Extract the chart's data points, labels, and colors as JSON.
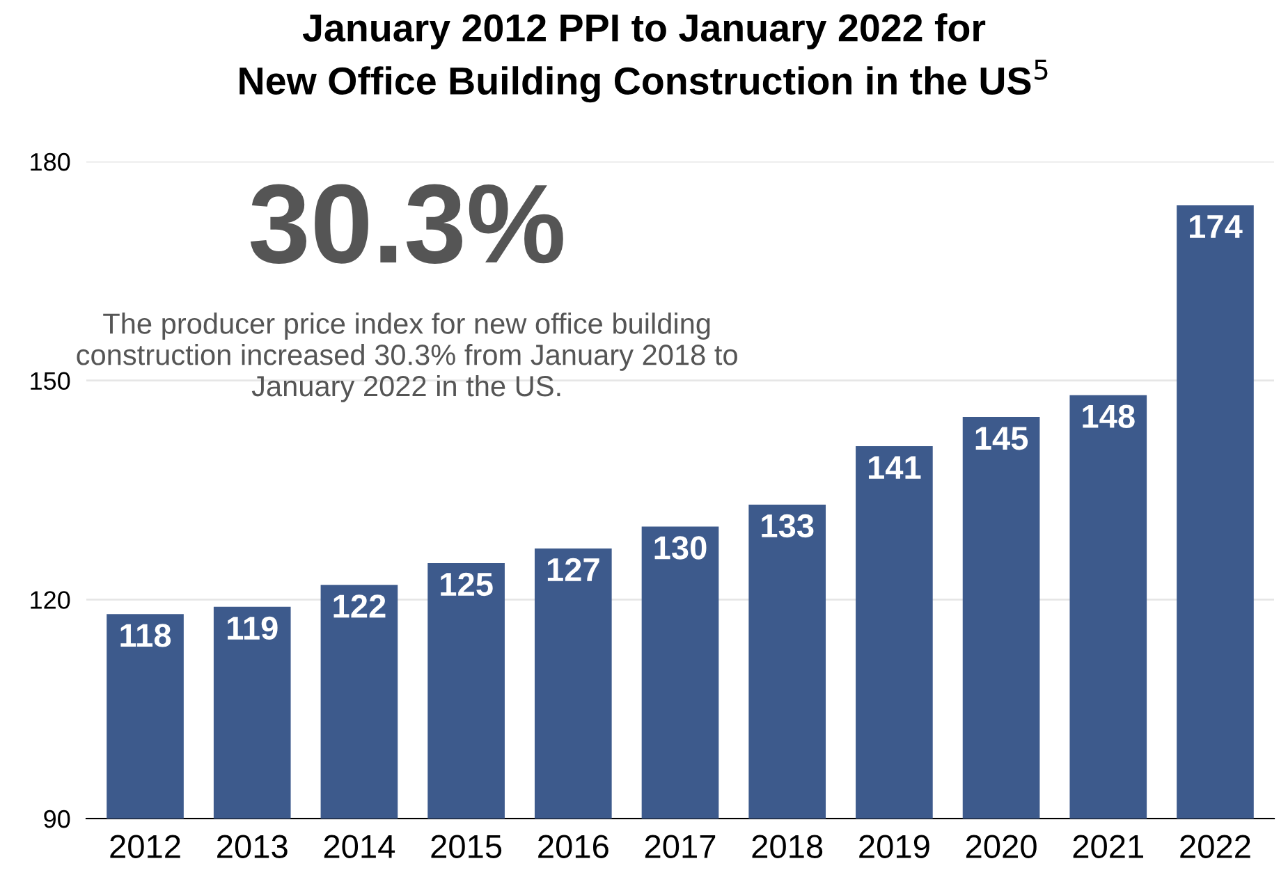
{
  "chart_data": {
    "type": "bar",
    "title": "January 2012 PPI to January 2022 for\nNew Office Building Construction in the US$^{5}$",
    "categories": [
      "2012",
      "2013",
      "2014",
      "2015",
      "2016",
      "2017",
      "2018",
      "2019",
      "2020",
      "2021",
      "2022"
    ],
    "values": [
      118,
      119,
      122,
      125,
      127,
      130,
      133,
      141,
      145,
      148,
      174
    ],
    "color": "#3d5a8c",
    "ylim": [
      90,
      180
    ],
    "yticks": [
      90,
      120,
      150,
      180
    ],
    "grid": "y",
    "data_labels": true,
    "legend": false,
    "annotations": [
      "30.3%",
      "The producer price index for new office building\nconstruction increased 30.3% from January 2018 to\nJanuary 2022 in the US."
    ]
  }
}
